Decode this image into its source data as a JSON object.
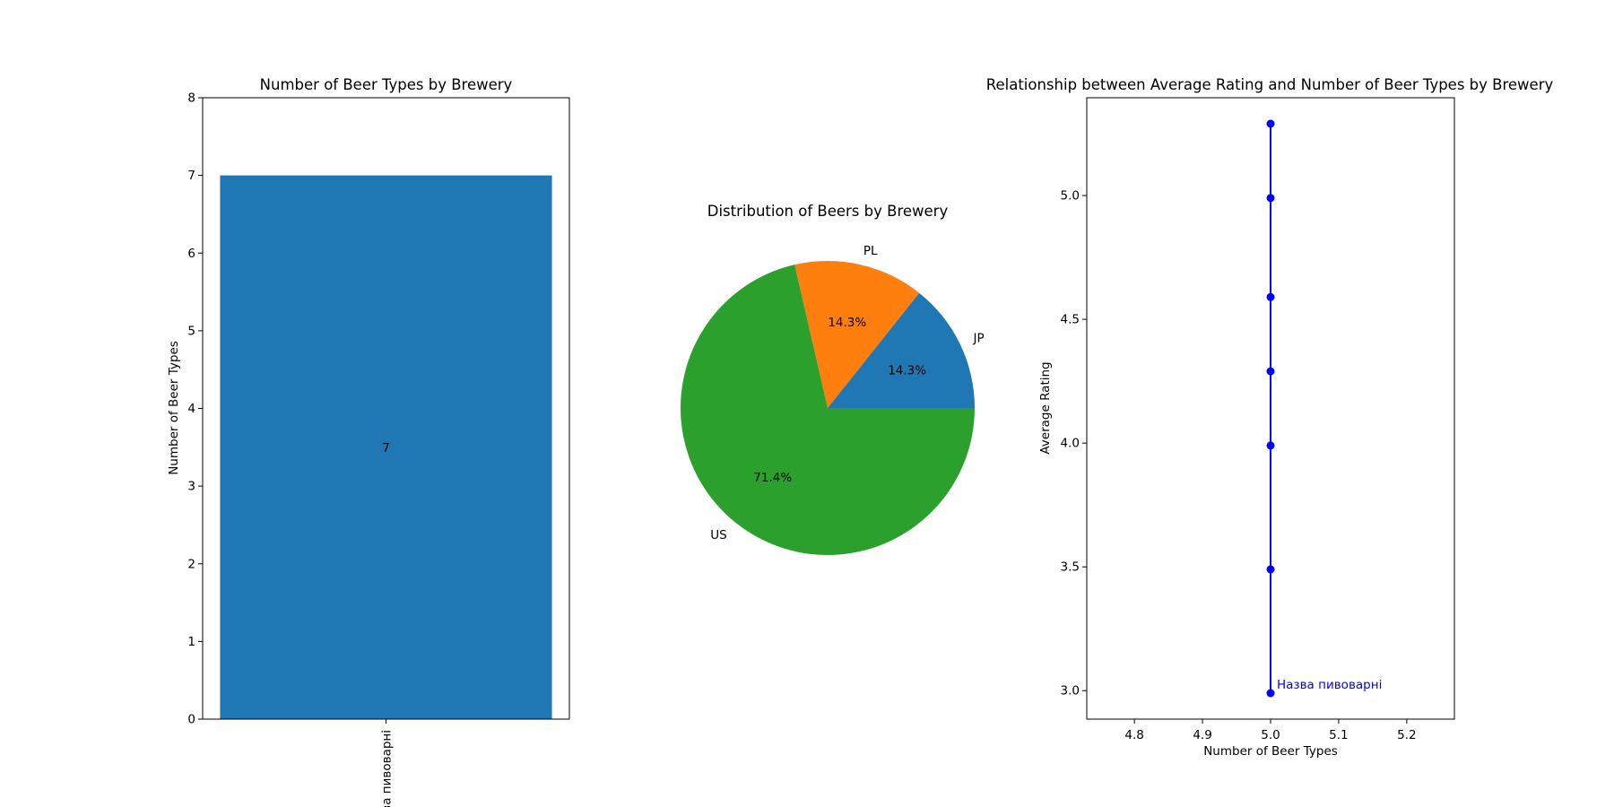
{
  "chart_data": [
    {
      "type": "bar",
      "title": "Number of Beer Types by Brewery",
      "xlabel": "",
      "ylabel": "Number of Beer Types",
      "categories": [
        "Назва пивоварні"
      ],
      "values": [
        7
      ],
      "data_labels": [
        "7"
      ],
      "ylim": [
        0,
        8
      ],
      "yticks": [
        0,
        1,
        2,
        3,
        4,
        5,
        6,
        7,
        8
      ],
      "bar_color": "#1f77b4",
      "grid": false
    },
    {
      "type": "pie",
      "title": "Distribution of Beers by Brewery",
      "labels": [
        "JP",
        "PL",
        "US"
      ],
      "values": [
        14.3,
        14.3,
        71.4
      ],
      "pct_labels": [
        "14.3%",
        "14.3%",
        "71.4%"
      ],
      "colors": [
        "#1f77b4",
        "#ff7f0e",
        "#2ca02c"
      ]
    },
    {
      "type": "line",
      "title": "Relationship between Average Rating and Number of Beer Types by Brewery",
      "xlabel": "Number of Beer Types",
      "ylabel": "Average Rating",
      "x": [
        5,
        5,
        5,
        5,
        5,
        5,
        5
      ],
      "y": [
        2.99,
        3.49,
        3.99,
        4.29,
        4.59,
        4.99,
        5.29
      ],
      "xlim": [
        4.73,
        5.27
      ],
      "ylim": [
        2.885,
        5.395
      ],
      "xticks": [
        "4.8",
        "4.9",
        "5.0",
        "5.1",
        "5.2"
      ],
      "yticks": [
        "3.0",
        "3.5",
        "4.0",
        "4.5",
        "5.0"
      ],
      "annotation": "Назва пивоварні",
      "color": "#0000ff",
      "grid": false
    }
  ]
}
